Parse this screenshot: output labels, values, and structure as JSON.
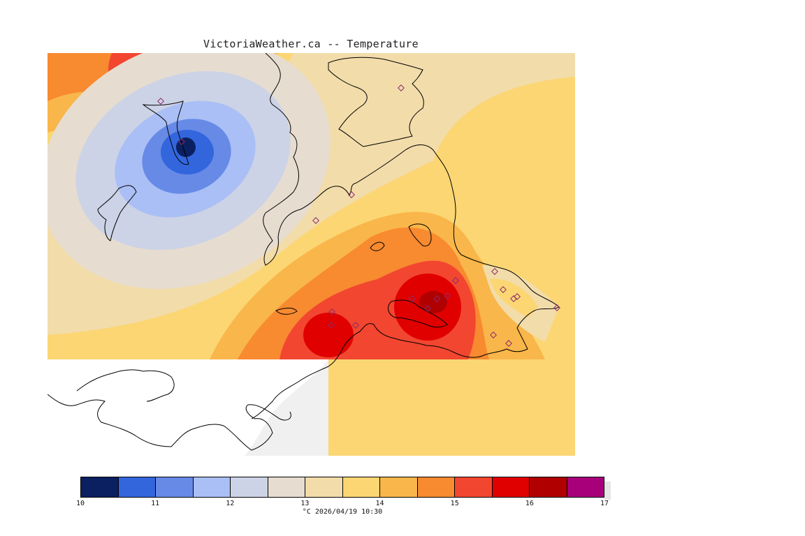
{
  "title": "VictoriaWeather.ca -- Temperature",
  "caption": "°C  2026/04/19 10:30",
  "units": "°C",
  "timestamp": "2026/04/19 10:30",
  "legend": {
    "min": 10,
    "max": 17,
    "ticks": [
      "10",
      "11",
      "12",
      "13",
      "14",
      "15",
      "16",
      "17"
    ],
    "bands": [
      {
        "range": [
          10.0,
          10.5
        ],
        "color": "#0a2060"
      },
      {
        "range": [
          10.5,
          11.0
        ],
        "color": "#3366dd"
      },
      {
        "range": [
          11.0,
          11.5
        ],
        "color": "#668ae6"
      },
      {
        "range": [
          11.5,
          12.0
        ],
        "color": "#aabff5"
      },
      {
        "range": [
          12.0,
          12.5
        ],
        "color": "#cdd3e6"
      },
      {
        "range": [
          12.5,
          13.0
        ],
        "color": "#e6ddd0"
      },
      {
        "range": [
          13.0,
          13.5
        ],
        "color": "#f2dcaa"
      },
      {
        "range": [
          13.5,
          14.0
        ],
        "color": "#fbd673"
      },
      {
        "range": [
          14.0,
          14.5
        ],
        "color": "#f9b64a"
      },
      {
        "range": [
          14.5,
          15.0
        ],
        "color": "#f88a30"
      },
      {
        "range": [
          15.0,
          15.5
        ],
        "color": "#f24630"
      },
      {
        "range": [
          15.5,
          16.0
        ],
        "color": "#e00000"
      },
      {
        "range": [
          16.0,
          16.5
        ],
        "color": "#b00000"
      },
      {
        "range": [
          16.5,
          17.0
        ],
        "color": "#a8007a"
      }
    ]
  },
  "colors": {
    "land_outside": "#ffffff",
    "water_outside": "#f0f0f0",
    "coastline": "#000000",
    "station_marker": "#8a2a6a"
  },
  "stations_count": 20
}
